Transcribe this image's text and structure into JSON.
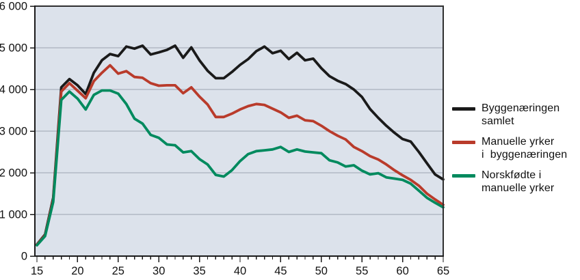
{
  "chart_data": {
    "type": "line",
    "title": "",
    "xlabel": "",
    "ylabel": "",
    "xlim": [
      15,
      65
    ],
    "ylim": [
      0,
      6000
    ],
    "grid": "horizontal",
    "legend_position": "right",
    "plot_background": "#dce2eb",
    "gridline_color": "#9ba4b2",
    "axis_color": "#1a1a1a",
    "frame_color": "#2f2f2f",
    "x": [
      15,
      16,
      17,
      18,
      19,
      20,
      21,
      22,
      23,
      24,
      25,
      26,
      27,
      28,
      29,
      30,
      31,
      32,
      33,
      34,
      35,
      36,
      37,
      38,
      39,
      40,
      41,
      42,
      43,
      44,
      45,
      46,
      47,
      48,
      49,
      50,
      51,
      52,
      53,
      54,
      55,
      56,
      57,
      58,
      59,
      60,
      61,
      62,
      63,
      64,
      65
    ],
    "x_tick_labels": [
      "15",
      "20",
      "25",
      "30",
      "35",
      "40",
      "45",
      "50",
      "55",
      "60",
      "65"
    ],
    "x_tick_values": [
      15,
      20,
      25,
      30,
      35,
      40,
      45,
      50,
      55,
      60,
      65
    ],
    "y_tick_labels": [
      "0",
      "1 000",
      "2 000",
      "3 000",
      "4 000",
      "5 000",
      "6 000"
    ],
    "y_tick_values": [
      0,
      1000,
      2000,
      3000,
      4000,
      5000,
      6000
    ],
    "series": [
      {
        "name": "Byggenæringen samlet",
        "label_lines": [
          "Byggenæringen",
          "samlet"
        ],
        "color": "#1a1a1a",
        "values": [
          280,
          520,
          1400,
          4050,
          4250,
          4100,
          3890,
          4400,
          4700,
          4850,
          4800,
          5030,
          4980,
          5050,
          4840,
          4890,
          4950,
          5050,
          4760,
          5010,
          4700,
          4450,
          4270,
          4270,
          4420,
          4590,
          4730,
          4920,
          5030,
          4870,
          4930,
          4730,
          4880,
          4700,
          4740,
          4510,
          4320,
          4210,
          4130,
          4000,
          3820,
          3530,
          3320,
          3130,
          2960,
          2810,
          2750,
          2500,
          2230,
          1960,
          1840
        ]
      },
      {
        "name": "Manuelle yrker i byggenæringen",
        "label_lines": [
          "Manuelle yrker",
          "i  byggenæringen"
        ],
        "color": "#b93b2b",
        "values": [
          270,
          500,
          1350,
          3950,
          4150,
          3970,
          3790,
          4200,
          4400,
          4580,
          4380,
          4440,
          4300,
          4280,
          4150,
          4090,
          4100,
          4100,
          3910,
          4050,
          3830,
          3640,
          3340,
          3340,
          3420,
          3520,
          3600,
          3650,
          3630,
          3540,
          3450,
          3320,
          3370,
          3260,
          3240,
          3130,
          3000,
          2890,
          2800,
          2620,
          2520,
          2400,
          2320,
          2200,
          2060,
          1940,
          1830,
          1690,
          1500,
          1360,
          1230
        ]
      },
      {
        "name": "Norskfødte i manuelle yrker",
        "label_lines": [
          "Norskfødte i",
          "manuelle yrker"
        ],
        "color": "#008a5e",
        "values": [
          260,
          480,
          1300,
          3750,
          3950,
          3780,
          3520,
          3870,
          3975,
          3975,
          3900,
          3650,
          3300,
          3180,
          2910,
          2840,
          2680,
          2660,
          2490,
          2520,
          2330,
          2200,
          1950,
          1910,
          2060,
          2280,
          2450,
          2520,
          2540,
          2560,
          2620,
          2500,
          2560,
          2510,
          2490,
          2470,
          2300,
          2250,
          2150,
          2180,
          2050,
          1960,
          1990,
          1890,
          1860,
          1830,
          1740,
          1570,
          1400,
          1280,
          1170
        ]
      }
    ]
  }
}
